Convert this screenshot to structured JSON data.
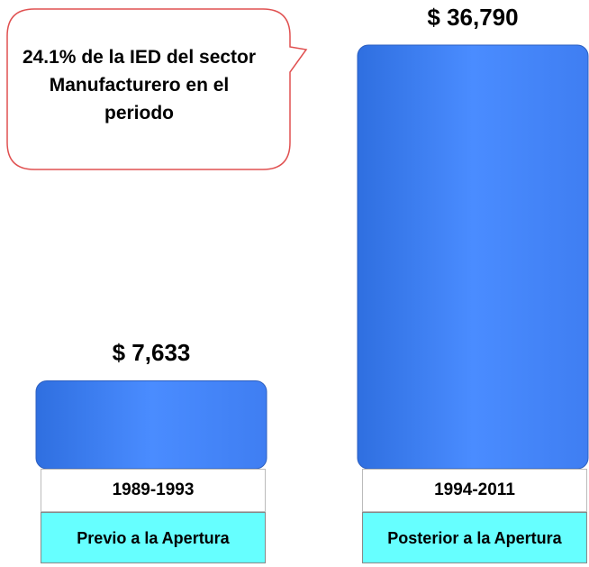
{
  "chart_data": {
    "type": "bar",
    "categories": [
      "1989-1993",
      "1994-2011"
    ],
    "category_descriptions": [
      "Previo a la Apertura",
      "Posterior a la Apertura"
    ],
    "values": [
      7633,
      36790
    ],
    "value_labels": [
      "$ 7,633",
      "$ 36,790"
    ],
    "color": "#4a8cff",
    "annotation": "24.1% de la IED del sector Manufacturero en el periodo"
  }
}
